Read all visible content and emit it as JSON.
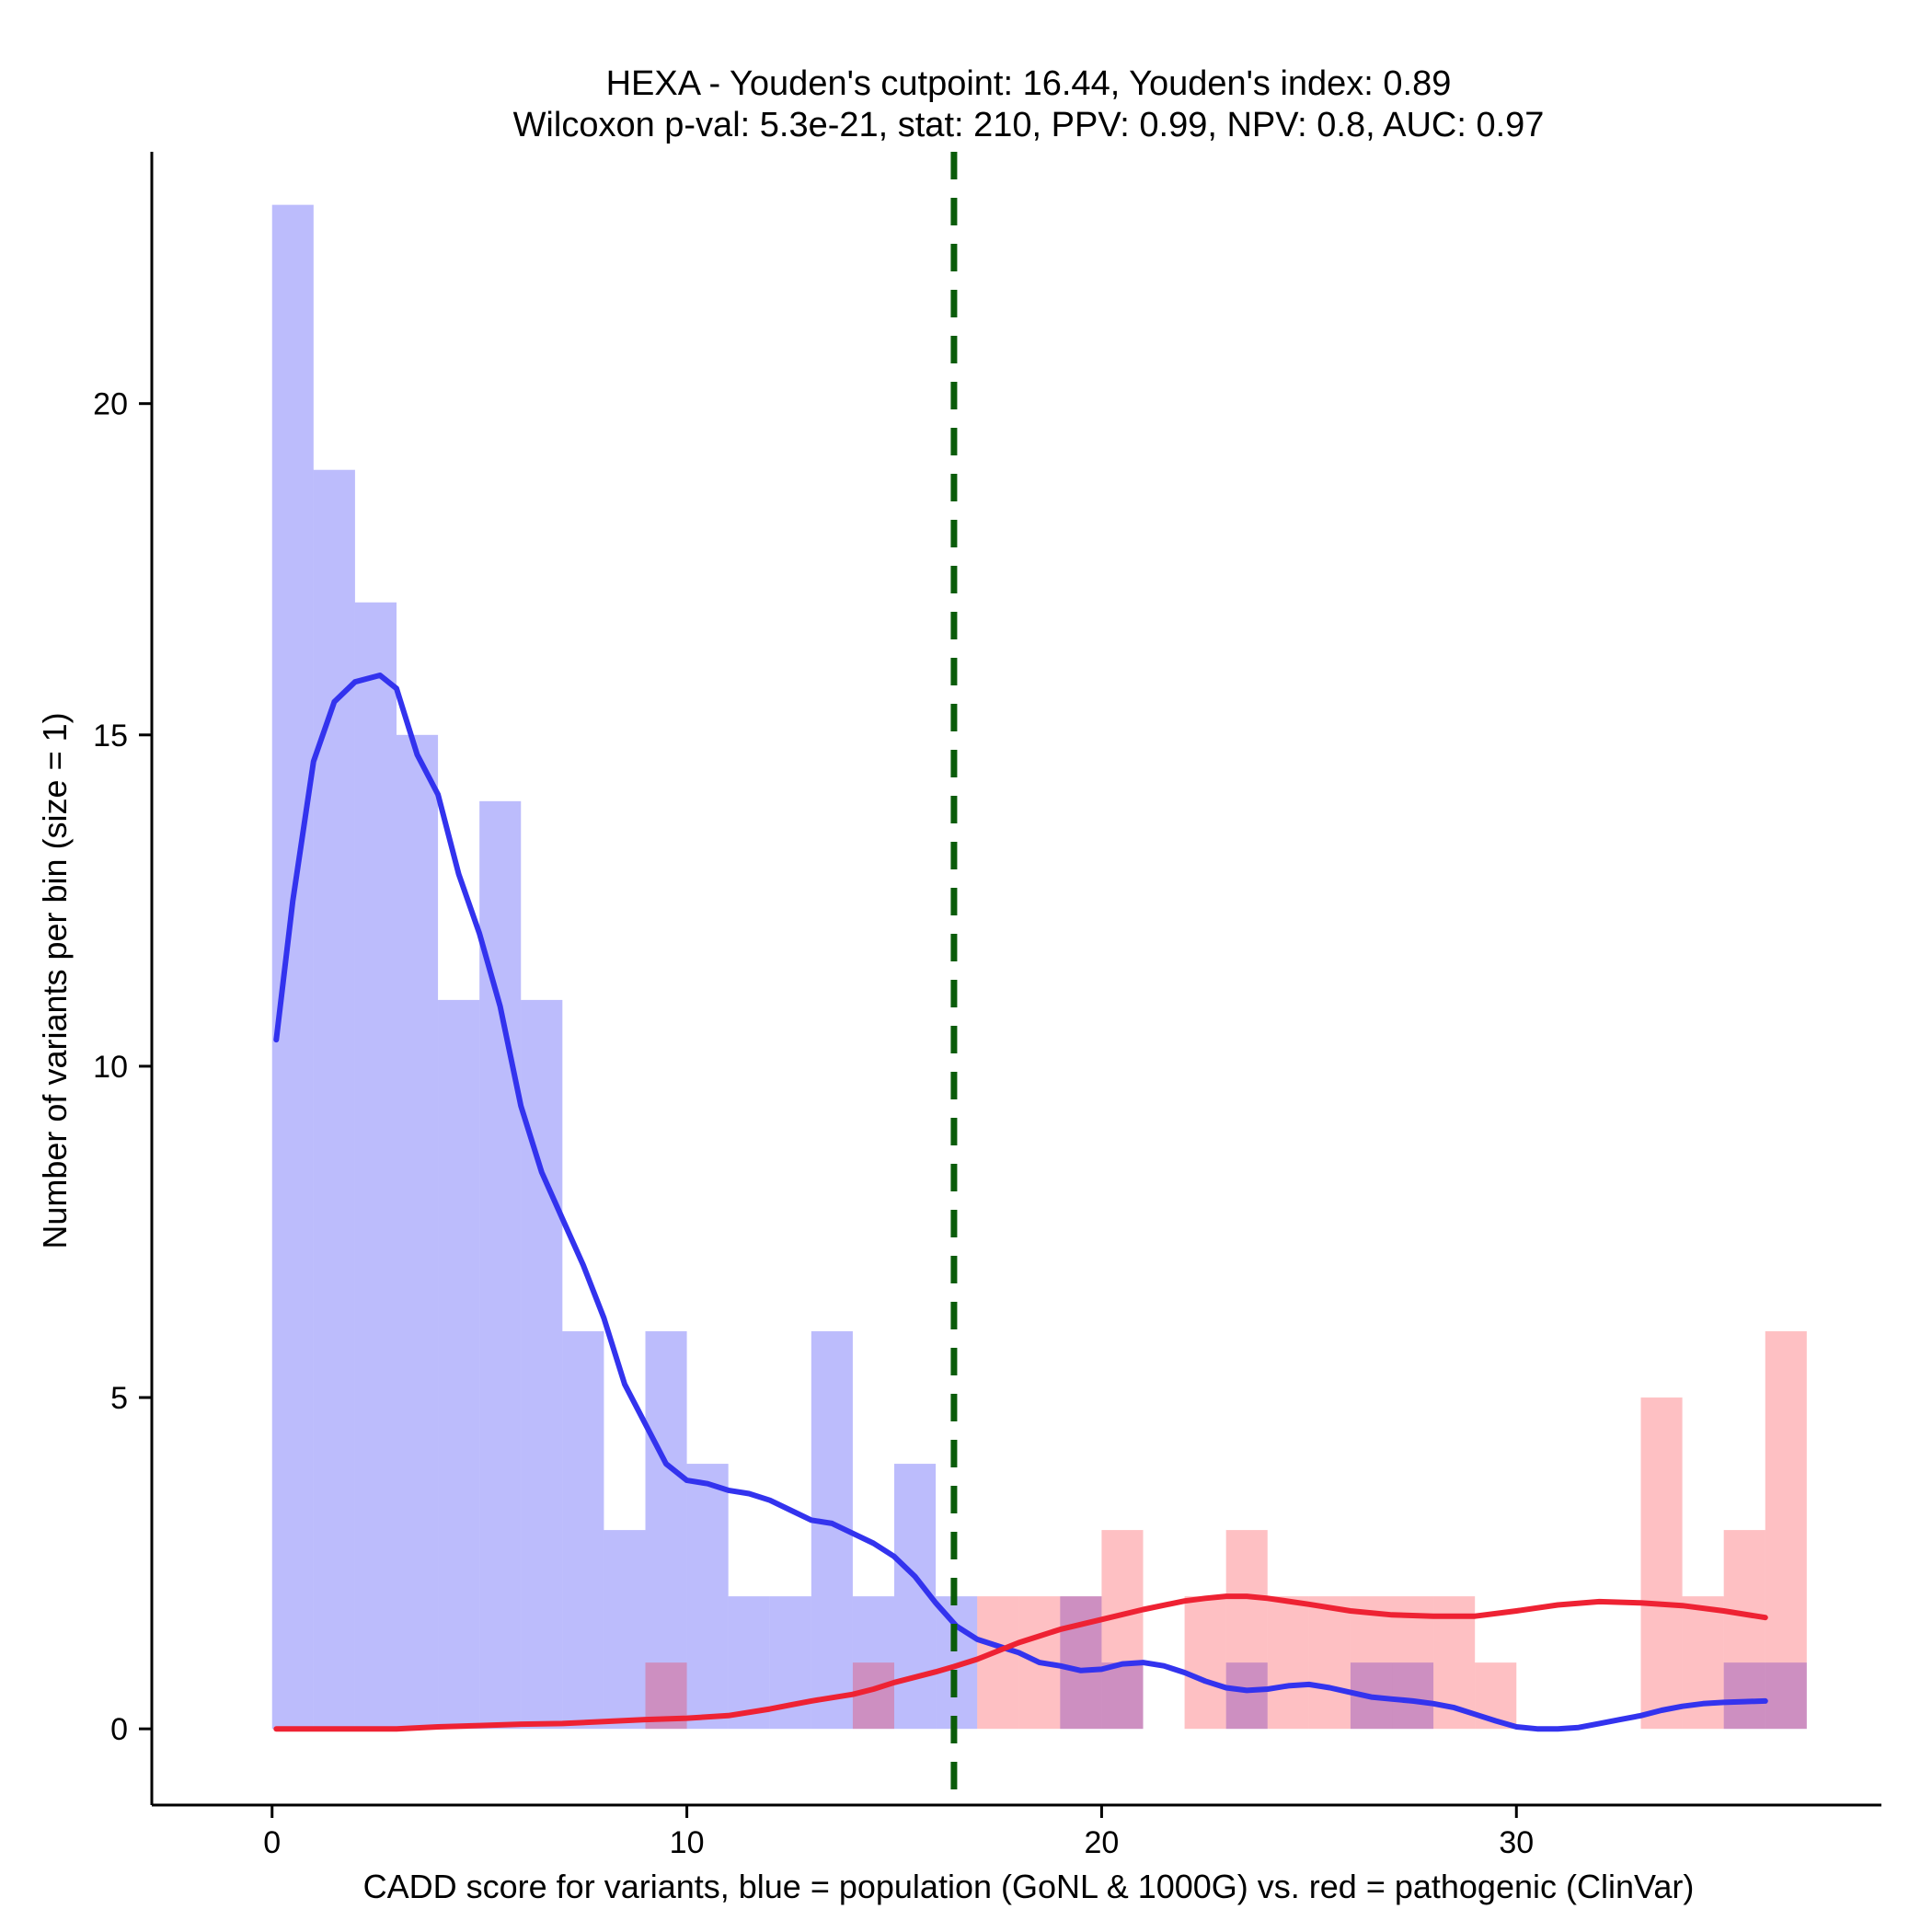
{
  "chart_data": {
    "type": "bar",
    "title": "HEXA - Youden's cutpoint: 16.44, Youden's index: 0.89",
    "subtitle": "Wilcoxon p-val: 5.3e-21, stat: 210, PPV: 0.99, NPV: 0.8, AUC: 0.97",
    "xlabel": "CADD score for variants, blue = population (GoNL & 1000G) vs. red = pathogenic (ClinVar)",
    "ylabel": "Number of variants per bin (size = 1)",
    "xlim": [
      -2.9,
      38.8
    ],
    "ylim": [
      -1.15,
      23.8
    ],
    "x_ticks": [
      0,
      10,
      20,
      30
    ],
    "y_ticks": [
      0,
      5,
      10,
      15,
      20
    ],
    "bin_size": 1,
    "cutpoint": 16.44,
    "series": [
      {
        "name": "population (GoNL & 1000G)",
        "color": "#0000ee",
        "bins": [
          {
            "x": 0,
            "count": 23
          },
          {
            "x": 1,
            "count": 19
          },
          {
            "x": 2,
            "count": 17
          },
          {
            "x": 3,
            "count": 15
          },
          {
            "x": 4,
            "count": 11
          },
          {
            "x": 5,
            "count": 14
          },
          {
            "x": 6,
            "count": 11
          },
          {
            "x": 7,
            "count": 6
          },
          {
            "x": 8,
            "count": 3
          },
          {
            "x": 9,
            "count": 6
          },
          {
            "x": 10,
            "count": 4
          },
          {
            "x": 11,
            "count": 2
          },
          {
            "x": 12,
            "count": 2
          },
          {
            "x": 13,
            "count": 6
          },
          {
            "x": 14,
            "count": 2
          },
          {
            "x": 15,
            "count": 4
          },
          {
            "x": 16,
            "count": 2
          },
          {
            "x": 19,
            "count": 2
          },
          {
            "x": 20,
            "count": 1
          },
          {
            "x": 23,
            "count": 1
          },
          {
            "x": 26,
            "count": 1
          },
          {
            "x": 27,
            "count": 1
          },
          {
            "x": 35,
            "count": 1
          },
          {
            "x": 36,
            "count": 1
          }
        ],
        "density_curve": [
          [
            0.1,
            10.4
          ],
          [
            0.5,
            12.5
          ],
          [
            1.0,
            14.6
          ],
          [
            1.5,
            15.5
          ],
          [
            2.0,
            15.8
          ],
          [
            2.6,
            15.9
          ],
          [
            3.0,
            15.7
          ],
          [
            3.5,
            14.7
          ],
          [
            4.0,
            14.1
          ],
          [
            4.5,
            12.9
          ],
          [
            5.0,
            12.0
          ],
          [
            5.5,
            10.9
          ],
          [
            6.0,
            9.4
          ],
          [
            6.5,
            8.4
          ],
          [
            7.0,
            7.7
          ],
          [
            7.5,
            7.0
          ],
          [
            8.0,
            6.2
          ],
          [
            8.5,
            5.2
          ],
          [
            9.0,
            4.6
          ],
          [
            9.5,
            4.0
          ],
          [
            10.0,
            3.75
          ],
          [
            10.5,
            3.7
          ],
          [
            11.0,
            3.6
          ],
          [
            11.5,
            3.55
          ],
          [
            12.0,
            3.45
          ],
          [
            12.5,
            3.3
          ],
          [
            13.0,
            3.15
          ],
          [
            13.5,
            3.1
          ],
          [
            14.0,
            2.95
          ],
          [
            14.5,
            2.8
          ],
          [
            15.0,
            2.6
          ],
          [
            15.5,
            2.3
          ],
          [
            16.0,
            1.9
          ],
          [
            16.5,
            1.55
          ],
          [
            17.0,
            1.35
          ],
          [
            17.5,
            1.25
          ],
          [
            18.0,
            1.15
          ],
          [
            18.5,
            1.0
          ],
          [
            19.0,
            0.95
          ],
          [
            19.5,
            0.88
          ],
          [
            20.0,
            0.9
          ],
          [
            20.5,
            0.98
          ],
          [
            21.0,
            1.0
          ],
          [
            21.5,
            0.95
          ],
          [
            22.0,
            0.85
          ],
          [
            22.5,
            0.72
          ],
          [
            23.0,
            0.62
          ],
          [
            23.5,
            0.58
          ],
          [
            24.0,
            0.6
          ],
          [
            24.5,
            0.65
          ],
          [
            25.0,
            0.67
          ],
          [
            25.5,
            0.62
          ],
          [
            26.0,
            0.55
          ],
          [
            26.5,
            0.48
          ],
          [
            27.0,
            0.45
          ],
          [
            27.5,
            0.42
          ],
          [
            28.0,
            0.38
          ],
          [
            28.5,
            0.32
          ],
          [
            29.0,
            0.22
          ],
          [
            29.5,
            0.12
          ],
          [
            30.0,
            0.03
          ],
          [
            30.5,
            0.0
          ],
          [
            31.0,
            0.0
          ],
          [
            31.5,
            0.02
          ],
          [
            32.0,
            0.08
          ],
          [
            32.5,
            0.14
          ],
          [
            33.0,
            0.2
          ],
          [
            33.5,
            0.28
          ],
          [
            34.0,
            0.34
          ],
          [
            34.5,
            0.38
          ],
          [
            35.0,
            0.4
          ],
          [
            35.5,
            0.41
          ],
          [
            36.0,
            0.42
          ]
        ]
      },
      {
        "name": "pathogenic (ClinVar)",
        "color": "#ff0000",
        "bins": [
          {
            "x": 9,
            "count": 1
          },
          {
            "x": 14,
            "count": 1
          },
          {
            "x": 17,
            "count": 2
          },
          {
            "x": 18,
            "count": 2
          },
          {
            "x": 19,
            "count": 2
          },
          {
            "x": 20,
            "count": 3
          },
          {
            "x": 22,
            "count": 2
          },
          {
            "x": 23,
            "count": 3
          },
          {
            "x": 24,
            "count": 2
          },
          {
            "x": 25,
            "count": 2
          },
          {
            "x": 26,
            "count": 2
          },
          {
            "x": 27,
            "count": 2
          },
          {
            "x": 28,
            "count": 2
          },
          {
            "x": 29,
            "count": 1
          },
          {
            "x": 33,
            "count": 5
          },
          {
            "x": 34,
            "count": 2
          },
          {
            "x": 35,
            "count": 3
          },
          {
            "x": 36,
            "count": 6
          }
        ],
        "density_curve": [
          [
            0.1,
            0.0
          ],
          [
            1.0,
            0.0
          ],
          [
            2.0,
            0.0
          ],
          [
            3.0,
            0.0
          ],
          [
            4.0,
            0.03
          ],
          [
            5.0,
            0.05
          ],
          [
            6.0,
            0.07
          ],
          [
            7.0,
            0.08
          ],
          [
            8.0,
            0.11
          ],
          [
            9.0,
            0.14
          ],
          [
            10.0,
            0.16
          ],
          [
            11.0,
            0.2
          ],
          [
            12.0,
            0.3
          ],
          [
            12.5,
            0.36
          ],
          [
            13.0,
            0.42
          ],
          [
            14.0,
            0.52
          ],
          [
            14.5,
            0.6
          ],
          [
            15.0,
            0.7
          ],
          [
            16.0,
            0.86
          ],
          [
            16.44,
            0.94
          ],
          [
            17.0,
            1.05
          ],
          [
            18.0,
            1.3
          ],
          [
            19.0,
            1.5
          ],
          [
            20.0,
            1.65
          ],
          [
            21.0,
            1.8
          ],
          [
            22.0,
            1.93
          ],
          [
            22.5,
            1.97
          ],
          [
            23.0,
            2.0
          ],
          [
            23.5,
            2.0
          ],
          [
            24.0,
            1.97
          ],
          [
            25.0,
            1.88
          ],
          [
            26.0,
            1.78
          ],
          [
            27.0,
            1.72
          ],
          [
            28.0,
            1.7
          ],
          [
            29.0,
            1.7
          ],
          [
            30.0,
            1.78
          ],
          [
            31.0,
            1.87
          ],
          [
            32.0,
            1.92
          ],
          [
            33.0,
            1.9
          ],
          [
            34.0,
            1.86
          ],
          [
            35.0,
            1.78
          ],
          [
            36.0,
            1.68
          ]
        ]
      }
    ]
  }
}
